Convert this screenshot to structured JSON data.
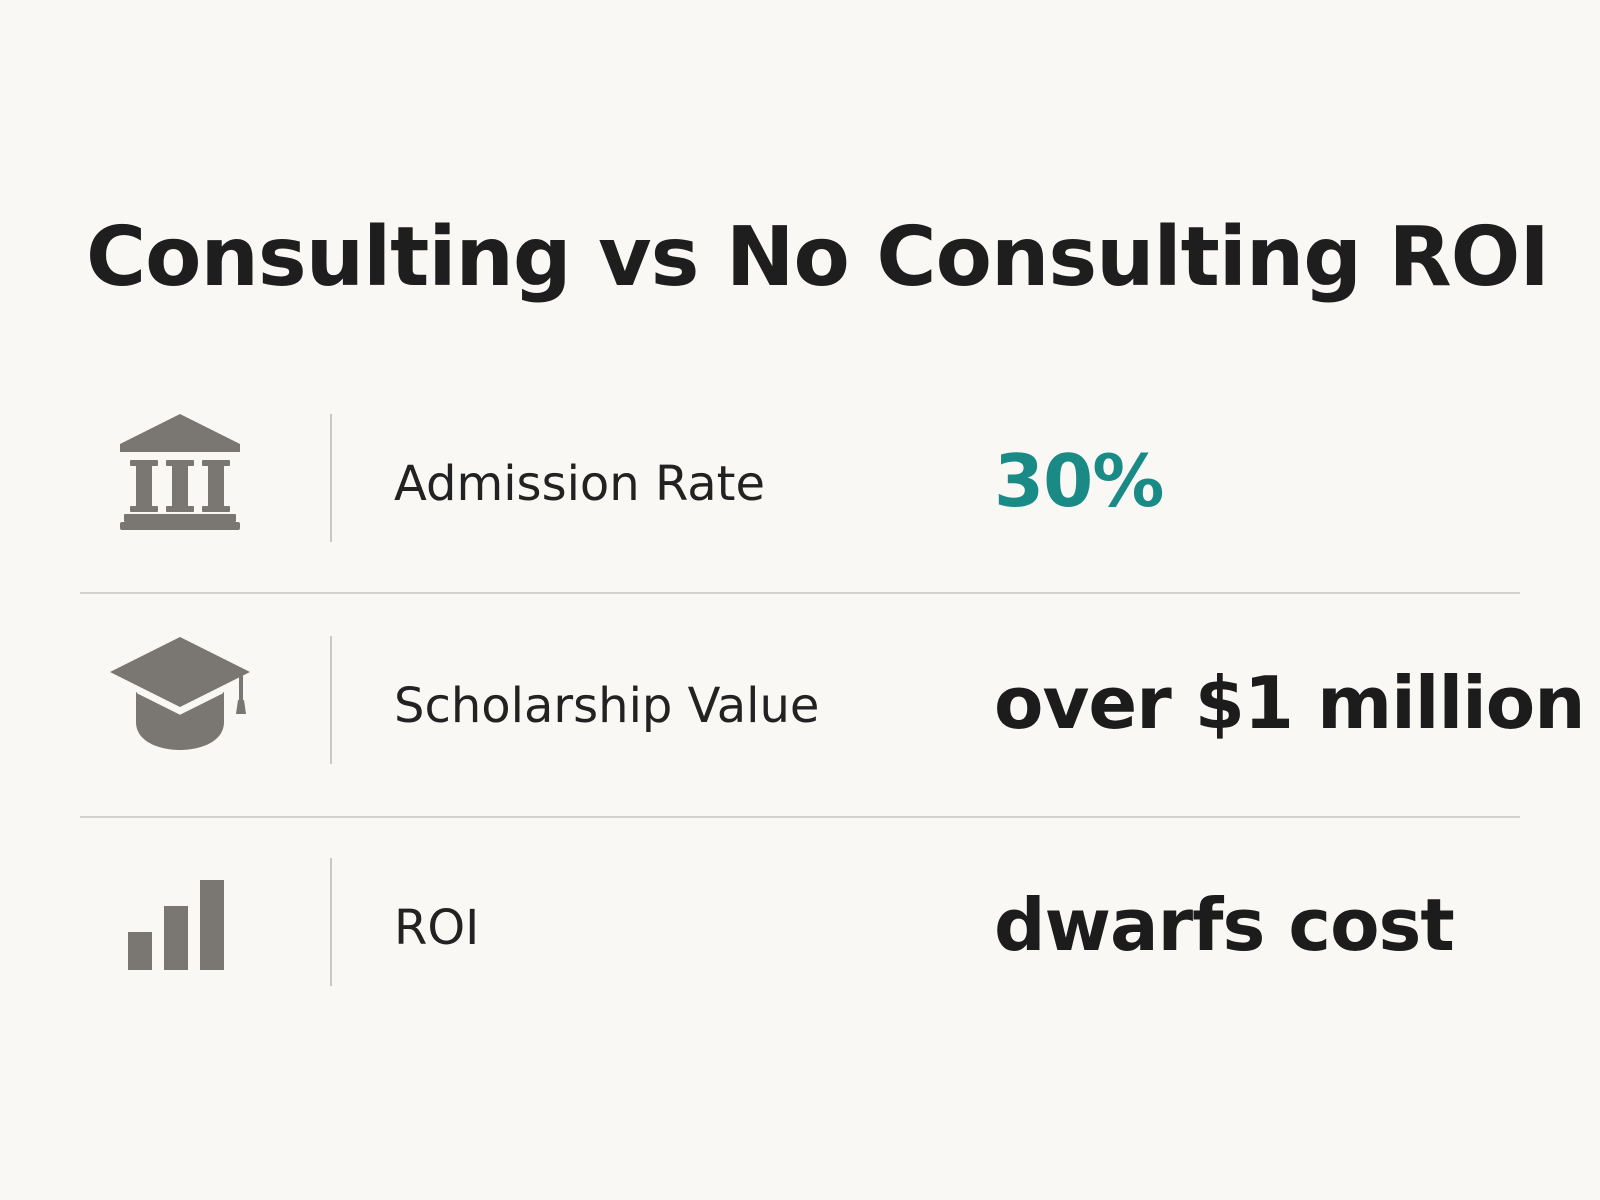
{
  "title": "Consulting vs No Consulting ROI",
  "colors": {
    "background": "#f9f8f4",
    "text": "#1c1c1c",
    "icon": "#7a7773",
    "accent": "#1a8a86",
    "divider": "#d3d2ce"
  },
  "rows": [
    {
      "icon": "bank-building-icon",
      "label": "Admission Rate",
      "value": "30%",
      "value_color": "#1a8a86"
    },
    {
      "icon": "graduation-cap-icon",
      "label": "Scholarship Value",
      "value": "over $1 million",
      "value_color": "#1c1c1c"
    },
    {
      "icon": "bar-chart-icon",
      "label": "ROI",
      "value": "dwarfs cost",
      "value_color": "#1c1c1c"
    }
  ]
}
